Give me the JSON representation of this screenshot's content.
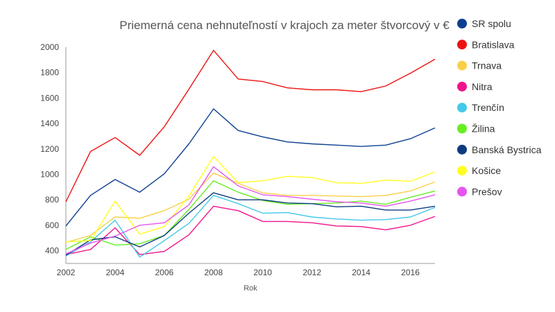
{
  "chart_data": {
    "type": "line",
    "title": "Priemerná cena nehnuteľností v krajoch za meter štvorcový v €",
    "xlabel": "Rok",
    "ylabel": "",
    "x": [
      2002,
      2003,
      2004,
      2005,
      2006,
      2007,
      2008,
      2009,
      2010,
      2011,
      2012,
      2013,
      2014,
      2015,
      2016,
      2017
    ],
    "xlim": [
      2002,
      2017
    ],
    "ylim": [
      300,
      2000
    ],
    "xticks": [
      "2002",
      "2004",
      "2006",
      "2008",
      "2010",
      "2012",
      "2014",
      "2016"
    ],
    "yticks": [
      "400",
      "600",
      "800",
      "1000",
      "1200",
      "1400",
      "1600",
      "1800",
      "2000"
    ],
    "grid": false,
    "legend_position": "right",
    "series": [
      {
        "name": "SR spolu",
        "color": "#0d3f8f",
        "values": [
          595,
          835,
          960,
          860,
          1005,
          1240,
          1515,
          1345,
          1295,
          1255,
          1240,
          1230,
          1220,
          1230,
          1280,
          1365
        ]
      },
      {
        "name": "Bratislava",
        "color": "#ee1111",
        "values": [
          785,
          1180,
          1290,
          1150,
          1375,
          1670,
          1975,
          1750,
          1730,
          1680,
          1665,
          1665,
          1650,
          1695,
          1795,
          1905
        ]
      },
      {
        "name": "Trnava",
        "color": "#f8d048",
        "values": [
          465,
          520,
          665,
          655,
          715,
          805,
          1010,
          930,
          855,
          835,
          835,
          830,
          825,
          835,
          870,
          940
        ]
      },
      {
        "name": "Nitra",
        "color": "#f0138b",
        "values": [
          370,
          410,
          580,
          370,
          395,
          525,
          750,
          715,
          630,
          630,
          620,
          595,
          590,
          565,
          600,
          670
        ]
      },
      {
        "name": "Trenčín",
        "color": "#44c8ea",
        "values": [
          360,
          470,
          640,
          350,
          480,
          615,
          835,
          770,
          695,
          700,
          665,
          650,
          640,
          645,
          665,
          740
        ]
      },
      {
        "name": "Žilina",
        "color": "#66ee22",
        "values": [
          410,
          510,
          445,
          455,
          520,
          725,
          950,
          860,
          795,
          765,
          770,
          775,
          790,
          765,
          820,
          870
        ]
      },
      {
        "name": "Banská Bystrica",
        "color": "#0d3b80",
        "values": [
          365,
          485,
          510,
          430,
          520,
          695,
          855,
          800,
          800,
          775,
          770,
          745,
          750,
          720,
          720,
          750
        ]
      },
      {
        "name": "Košice",
        "color": "#ffff22",
        "values": [
          470,
          480,
          790,
          530,
          590,
          830,
          1140,
          935,
          950,
          985,
          975,
          935,
          930,
          955,
          945,
          1020
        ]
      },
      {
        "name": "Prešov",
        "color": "#e555ee",
        "values": [
          375,
          460,
          515,
          600,
          620,
          760,
          1060,
          910,
          840,
          825,
          805,
          785,
          775,
          750,
          790,
          840
        ]
      }
    ]
  }
}
